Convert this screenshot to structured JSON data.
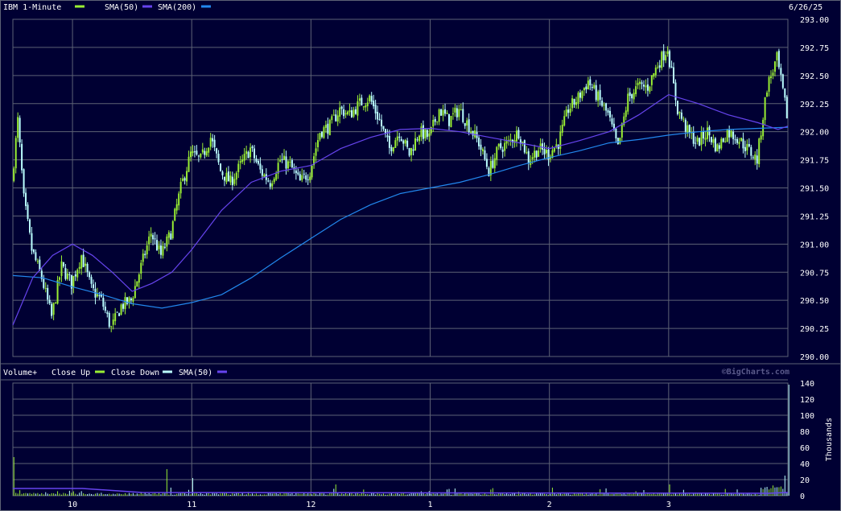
{
  "chart_data": [
    {
      "type": "candlestick",
      "title": "IBM 1-Minute",
      "date": "6/26/25",
      "ylim": [
        290.0,
        293.0
      ],
      "y_ticks": [
        "293.00",
        "292.75",
        "292.50",
        "292.25",
        "292.00",
        "291.75",
        "291.50",
        "291.25",
        "291.00",
        "290.75",
        "290.50",
        "290.25",
        "290.00"
      ],
      "x_ticks": [
        "10",
        "11",
        "12",
        "1",
        "2",
        "3"
      ],
      "legend": [
        {
          "label": "IBM 1-Minute",
          "color": "#99ee33"
        },
        {
          "label": "SMA(50)",
          "color": "#6644ee"
        },
        {
          "label": "SMA(200)",
          "color": "#2288ee"
        }
      ],
      "colors": {
        "up": "#99ee33",
        "down": "#bbffff",
        "sma50": "#6644ee",
        "sma200": "#2288ee"
      },
      "price_path": [
        {
          "t": "9:30",
          "v": 291.55
        },
        {
          "t": "9:33",
          "v": 292.1
        },
        {
          "t": "9:36",
          "v": 291.4
        },
        {
          "t": "9:40",
          "v": 290.95
        },
        {
          "t": "9:45",
          "v": 290.7
        },
        {
          "t": "9:50",
          "v": 290.35
        },
        {
          "t": "9:55",
          "v": 290.8
        },
        {
          "t": "10:00",
          "v": 290.65
        },
        {
          "t": "10:05",
          "v": 290.9
        },
        {
          "t": "10:10",
          "v": 290.6
        },
        {
          "t": "10:15",
          "v": 290.5
        },
        {
          "t": "10:20",
          "v": 290.25
        },
        {
          "t": "10:25",
          "v": 290.45
        },
        {
          "t": "10:30",
          "v": 290.5
        },
        {
          "t": "10:35",
          "v": 290.8
        },
        {
          "t": "10:40",
          "v": 291.1
        },
        {
          "t": "10:45",
          "v": 290.9
        },
        {
          "t": "10:50",
          "v": 291.1
        },
        {
          "t": "10:55",
          "v": 291.5
        },
        {
          "t": "11:00",
          "v": 291.8
        },
        {
          "t": "11:05",
          "v": 291.75
        },
        {
          "t": "11:10",
          "v": 291.95
        },
        {
          "t": "11:15",
          "v": 291.65
        },
        {
          "t": "11:20",
          "v": 291.55
        },
        {
          "t": "11:25",
          "v": 291.7
        },
        {
          "t": "11:30",
          "v": 291.85
        },
        {
          "t": "11:35",
          "v": 291.65
        },
        {
          "t": "11:40",
          "v": 291.55
        },
        {
          "t": "11:45",
          "v": 291.75
        },
        {
          "t": "11:50",
          "v": 291.7
        },
        {
          "t": "11:55",
          "v": 291.55
        },
        {
          "t": "12:00",
          "v": 291.65
        },
        {
          "t": "12:05",
          "v": 292.0
        },
        {
          "t": "12:10",
          "v": 292.05
        },
        {
          "t": "12:15",
          "v": 292.2
        },
        {
          "t": "12:20",
          "v": 292.15
        },
        {
          "t": "12:25",
          "v": 292.25
        },
        {
          "t": "12:30",
          "v": 292.3
        },
        {
          "t": "12:35",
          "v": 292.1
        },
        {
          "t": "12:40",
          "v": 291.85
        },
        {
          "t": "12:45",
          "v": 292.0
        },
        {
          "t": "12:50",
          "v": 291.8
        },
        {
          "t": "12:55",
          "v": 292.0
        },
        {
          "t": "13:00",
          "v": 291.95
        },
        {
          "t": "13:05",
          "v": 292.2
        },
        {
          "t": "13:10",
          "v": 292.1
        },
        {
          "t": "13:15",
          "v": 292.2
        },
        {
          "t": "13:20",
          "v": 292.05
        },
        {
          "t": "13:25",
          "v": 291.9
        },
        {
          "t": "13:30",
          "v": 291.65
        },
        {
          "t": "13:35",
          "v": 291.85
        },
        {
          "t": "13:40",
          "v": 291.9
        },
        {
          "t": "13:45",
          "v": 292.0
        },
        {
          "t": "13:50",
          "v": 291.75
        },
        {
          "t": "13:55",
          "v": 291.85
        },
        {
          "t": "14:00",
          "v": 291.8
        },
        {
          "t": "14:05",
          "v": 291.9
        },
        {
          "t": "14:10",
          "v": 292.2
        },
        {
          "t": "14:15",
          "v": 292.3
        },
        {
          "t": "14:20",
          "v": 292.45
        },
        {
          "t": "14:25",
          "v": 292.3
        },
        {
          "t": "14:30",
          "v": 292.15
        },
        {
          "t": "14:35",
          "v": 291.85
        },
        {
          "t": "14:40",
          "v": 292.3
        },
        {
          "t": "14:45",
          "v": 292.4
        },
        {
          "t": "14:50",
          "v": 292.4
        },
        {
          "t": "14:55",
          "v": 292.6
        },
        {
          "t": "15:00",
          "v": 292.75
        },
        {
          "t": "15:03",
          "v": 292.4
        },
        {
          "t": "15:05",
          "v": 292.2
        },
        {
          "t": "15:10",
          "v": 292.0
        },
        {
          "t": "15:15",
          "v": 291.9
        },
        {
          "t": "15:20",
          "v": 292.0
        },
        {
          "t": "15:25",
          "v": 291.85
        },
        {
          "t": "15:30",
          "v": 292.0
        },
        {
          "t": "15:35",
          "v": 291.95
        },
        {
          "t": "15:40",
          "v": 291.85
        },
        {
          "t": "15:45",
          "v": 291.75
        },
        {
          "t": "15:50",
          "v": 292.4
        },
        {
          "t": "15:55",
          "v": 292.65
        },
        {
          "t": "16:00",
          "v": 292.15
        }
      ],
      "sma50_path": [
        {
          "t": "9:30",
          "v": 290.28
        },
        {
          "t": "9:40",
          "v": 290.7
        },
        {
          "t": "9:50",
          "v": 290.9
        },
        {
          "t": "10:00",
          "v": 291.0
        },
        {
          "t": "10:10",
          "v": 290.9
        },
        {
          "t": "10:20",
          "v": 290.75
        },
        {
          "t": "10:30",
          "v": 290.58
        },
        {
          "t": "10:40",
          "v": 290.65
        },
        {
          "t": "10:50",
          "v": 290.75
        },
        {
          "t": "11:00",
          "v": 290.95
        },
        {
          "t": "11:15",
          "v": 291.3
        },
        {
          "t": "11:30",
          "v": 291.55
        },
        {
          "t": "11:45",
          "v": 291.65
        },
        {
          "t": "12:00",
          "v": 291.7
        },
        {
          "t": "12:15",
          "v": 291.85
        },
        {
          "t": "12:30",
          "v": 291.95
        },
        {
          "t": "12:45",
          "v": 292.02
        },
        {
          "t": "13:00",
          "v": 292.03
        },
        {
          "t": "13:15",
          "v": 292.0
        },
        {
          "t": "13:30",
          "v": 291.95
        },
        {
          "t": "13:45",
          "v": 291.9
        },
        {
          "t": "14:00",
          "v": 291.85
        },
        {
          "t": "14:15",
          "v": 291.92
        },
        {
          "t": "14:30",
          "v": 292.0
        },
        {
          "t": "14:45",
          "v": 292.15
        },
        {
          "t": "15:00",
          "v": 292.33
        },
        {
          "t": "15:15",
          "v": 292.25
        },
        {
          "t": "15:30",
          "v": 292.15
        },
        {
          "t": "15:45",
          "v": 292.08
        },
        {
          "t": "15:55",
          "v": 292.02
        },
        {
          "t": "16:00",
          "v": 292.05
        }
      ],
      "sma200_path": [
        {
          "t": "9:30",
          "v": 290.72
        },
        {
          "t": "9:45",
          "v": 290.7
        },
        {
          "t": "10:00",
          "v": 290.62
        },
        {
          "t": "10:15",
          "v": 290.55
        },
        {
          "t": "10:30",
          "v": 290.47
        },
        {
          "t": "10:45",
          "v": 290.43
        },
        {
          "t": "11:00",
          "v": 290.48
        },
        {
          "t": "11:15",
          "v": 290.55
        },
        {
          "t": "11:30",
          "v": 290.7
        },
        {
          "t": "11:45",
          "v": 290.88
        },
        {
          "t": "12:00",
          "v": 291.05
        },
        {
          "t": "12:15",
          "v": 291.22
        },
        {
          "t": "12:30",
          "v": 291.35
        },
        {
          "t": "12:45",
          "v": 291.45
        },
        {
          "t": "13:00",
          "v": 291.5
        },
        {
          "t": "13:15",
          "v": 291.55
        },
        {
          "t": "13:30",
          "v": 291.62
        },
        {
          "t": "13:45",
          "v": 291.7
        },
        {
          "t": "14:00",
          "v": 291.77
        },
        {
          "t": "14:15",
          "v": 291.83
        },
        {
          "t": "14:30",
          "v": 291.9
        },
        {
          "t": "14:45",
          "v": 291.93
        },
        {
          "t": "15:00",
          "v": 291.97
        },
        {
          "t": "15:15",
          "v": 292.0
        },
        {
          "t": "15:30",
          "v": 292.02
        },
        {
          "t": "15:45",
          "v": 292.03
        },
        {
          "t": "16:00",
          "v": 292.04
        }
      ]
    },
    {
      "type": "bar",
      "title": "Volume+",
      "watermark": "©BigCharts.com",
      "ylabel": "Thousands",
      "ylim": [
        0,
        140
      ],
      "y_ticks": [
        "140",
        "120",
        "100",
        "80",
        "60",
        "40",
        "20",
        "0"
      ],
      "x_ticks": [
        "10",
        "11",
        "12",
        "1",
        "2",
        "3"
      ],
      "legend": [
        {
          "label": "Close Up",
          "color": "#99ee33"
        },
        {
          "label": "Close Down",
          "color": "#bbffff"
        },
        {
          "label": "SMA(50)",
          "color": "#6644ee"
        }
      ],
      "volume_spikes": [
        {
          "t": "9:30",
          "v": 48
        },
        {
          "t": "10:47",
          "v": 33
        },
        {
          "t": "11:00",
          "v": 22
        },
        {
          "t": "12:12",
          "v": 14
        },
        {
          "t": "15:00",
          "v": 14
        },
        {
          "t": "15:58",
          "v": 25
        },
        {
          "t": "16:00",
          "v": 138
        }
      ],
      "sma50_level_start": 9,
      "sma50_level_end": 3
    }
  ]
}
